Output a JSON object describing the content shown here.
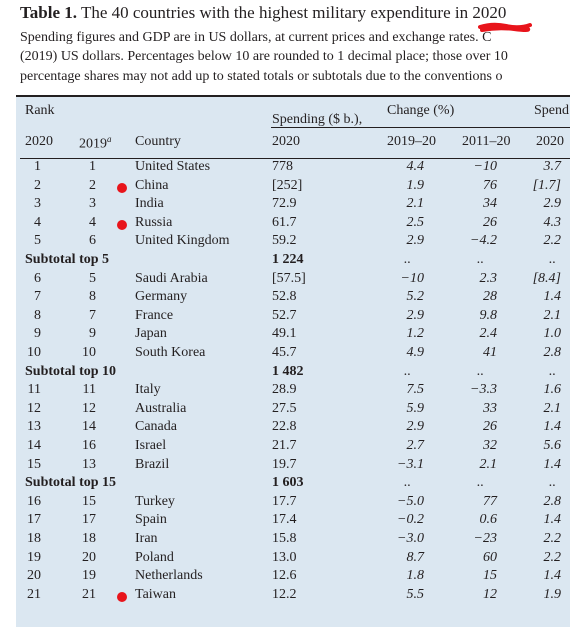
{
  "title_bold": "Table 1.",
  "title_rest": " The 40 countries with the highest military expenditure in 2020",
  "caption_lines": [
    "Spending figures and GDP are in US dollars, at current prices and exchange rates. C",
    "(2019) US dollars. Percentages below 10 are rounded to 1 decimal place; those over 10",
    "percentage shares may not add up to stated totals or subtotals due to the conventions o"
  ],
  "headers": {
    "rank": "Rank",
    "spending": "Spending ($ b.),",
    "change": "Change (%)",
    "spend_share": "Spend",
    "y2020": "2020",
    "y2019": "2019",
    "y2019_sup": "a",
    "country": "Country",
    "spending_year": "2020",
    "ch1": "2019–20",
    "ch2": "2011–20",
    "share_year": "2020"
  },
  "rows": [
    {
      "type": "data",
      "r20": "1",
      "r19": "1",
      "country": "United States",
      "spend": "778",
      "ch1": "4.4",
      "ch2": "−10",
      "share": "3.7",
      "marked": false
    },
    {
      "type": "data",
      "r20": "2",
      "r19": "2",
      "country": "China",
      "spend": "[252]",
      "ch1": "1.9",
      "ch2": "76",
      "share": "[1.7]",
      "marked": true
    },
    {
      "type": "data",
      "r20": "3",
      "r19": "3",
      "country": "India",
      "spend": "72.9",
      "ch1": "2.1",
      "ch2": "34",
      "share": "2.9",
      "marked": false
    },
    {
      "type": "data",
      "r20": "4",
      "r19": "4",
      "country": "Russia",
      "spend": "61.7",
      "ch1": "2.5",
      "ch2": "26",
      "share": "4.3",
      "marked": true
    },
    {
      "type": "data",
      "r20": "5",
      "r19": "6",
      "country": "United Kingdom",
      "spend": "59.2",
      "ch1": "2.9",
      "ch2": "−4.2",
      "share": "2.2",
      "marked": false
    },
    {
      "type": "sub",
      "label": "Subtotal top 5",
      "spend": "1 224",
      "ch1": "..",
      "ch2": "..",
      "share": ".."
    },
    {
      "type": "data",
      "r20": "6",
      "r19": "5",
      "country": "Saudi Arabia",
      "spend": "[57.5]",
      "ch1": "−10",
      "ch2": "2.3",
      "share": "[8.4]",
      "marked": false
    },
    {
      "type": "data",
      "r20": "7",
      "r19": "8",
      "country": "Germany",
      "spend": "52.8",
      "ch1": "5.2",
      "ch2": "28",
      "share": "1.4",
      "marked": false
    },
    {
      "type": "data",
      "r20": "8",
      "r19": "7",
      "country": "France",
      "spend": "52.7",
      "ch1": "2.9",
      "ch2": "9.8",
      "share": "2.1",
      "marked": false
    },
    {
      "type": "data",
      "r20": "9",
      "r19": "9",
      "country": "Japan",
      "spend": "49.1",
      "ch1": "1.2",
      "ch2": "2.4",
      "share": "1.0",
      "marked": false
    },
    {
      "type": "data",
      "r20": "10",
      "r19": "10",
      "country": "South Korea",
      "spend": "45.7",
      "ch1": "4.9",
      "ch2": "41",
      "share": "2.8",
      "marked": false
    },
    {
      "type": "sub",
      "label": "Subtotal top 10",
      "spend": "1 482",
      "ch1": "..",
      "ch2": "..",
      "share": ".."
    },
    {
      "type": "data",
      "r20": "11",
      "r19": "11",
      "country": "Italy",
      "spend": "28.9",
      "ch1": "7.5",
      "ch2": "−3.3",
      "share": "1.6",
      "marked": false
    },
    {
      "type": "data",
      "r20": "12",
      "r19": "12",
      "country": "Australia",
      "spend": "27.5",
      "ch1": "5.9",
      "ch2": "33",
      "share": "2.1",
      "marked": false
    },
    {
      "type": "data",
      "r20": "13",
      "r19": "14",
      "country": "Canada",
      "spend": "22.8",
      "ch1": "2.9",
      "ch2": "26",
      "share": "1.4",
      "marked": false
    },
    {
      "type": "data",
      "r20": "14",
      "r19": "16",
      "country": "Israel",
      "spend": "21.7",
      "ch1": "2.7",
      "ch2": "32",
      "share": "5.6",
      "marked": false
    },
    {
      "type": "data",
      "r20": "15",
      "r19": "13",
      "country": "Brazil",
      "spend": "19.7",
      "ch1": "−3.1",
      "ch2": "2.1",
      "share": "1.4",
      "marked": false
    },
    {
      "type": "sub",
      "label": "Subtotal top 15",
      "spend": "1 603",
      "ch1": "..",
      "ch2": "..",
      "share": ".."
    },
    {
      "type": "data",
      "r20": "16",
      "r19": "15",
      "country": "Turkey",
      "spend": "17.7",
      "ch1": "−5.0",
      "ch2": "77",
      "share": "2.8",
      "marked": false
    },
    {
      "type": "data",
      "r20": "17",
      "r19": "17",
      "country": "Spain",
      "spend": "17.4",
      "ch1": "−0.2",
      "ch2": "0.6",
      "share": "1.4",
      "marked": false
    },
    {
      "type": "data",
      "r20": "18",
      "r19": "18",
      "country": "Iran",
      "spend": "15.8",
      "ch1": "−3.0",
      "ch2": "−23",
      "share": "2.2",
      "marked": false
    },
    {
      "type": "data",
      "r20": "19",
      "r19": "20",
      "country": "Poland",
      "spend": "13.0",
      "ch1": "8.7",
      "ch2": "60",
      "share": "2.2",
      "marked": false
    },
    {
      "type": "data",
      "r20": "20",
      "r19": "19",
      "country": "Netherlands",
      "spend": "12.6",
      "ch1": "1.8",
      "ch2": "15",
      "share": "1.4",
      "marked": false
    },
    {
      "type": "data",
      "r20": "21",
      "r19": "21",
      "country": "Taiwan",
      "spend": "12.2",
      "ch1": "5.5",
      "ch2": "12",
      "share": "1.9",
      "marked": true
    }
  ],
  "colors": {
    "marker": "#e8141b",
    "table_bg": "#dbe7f1"
  }
}
